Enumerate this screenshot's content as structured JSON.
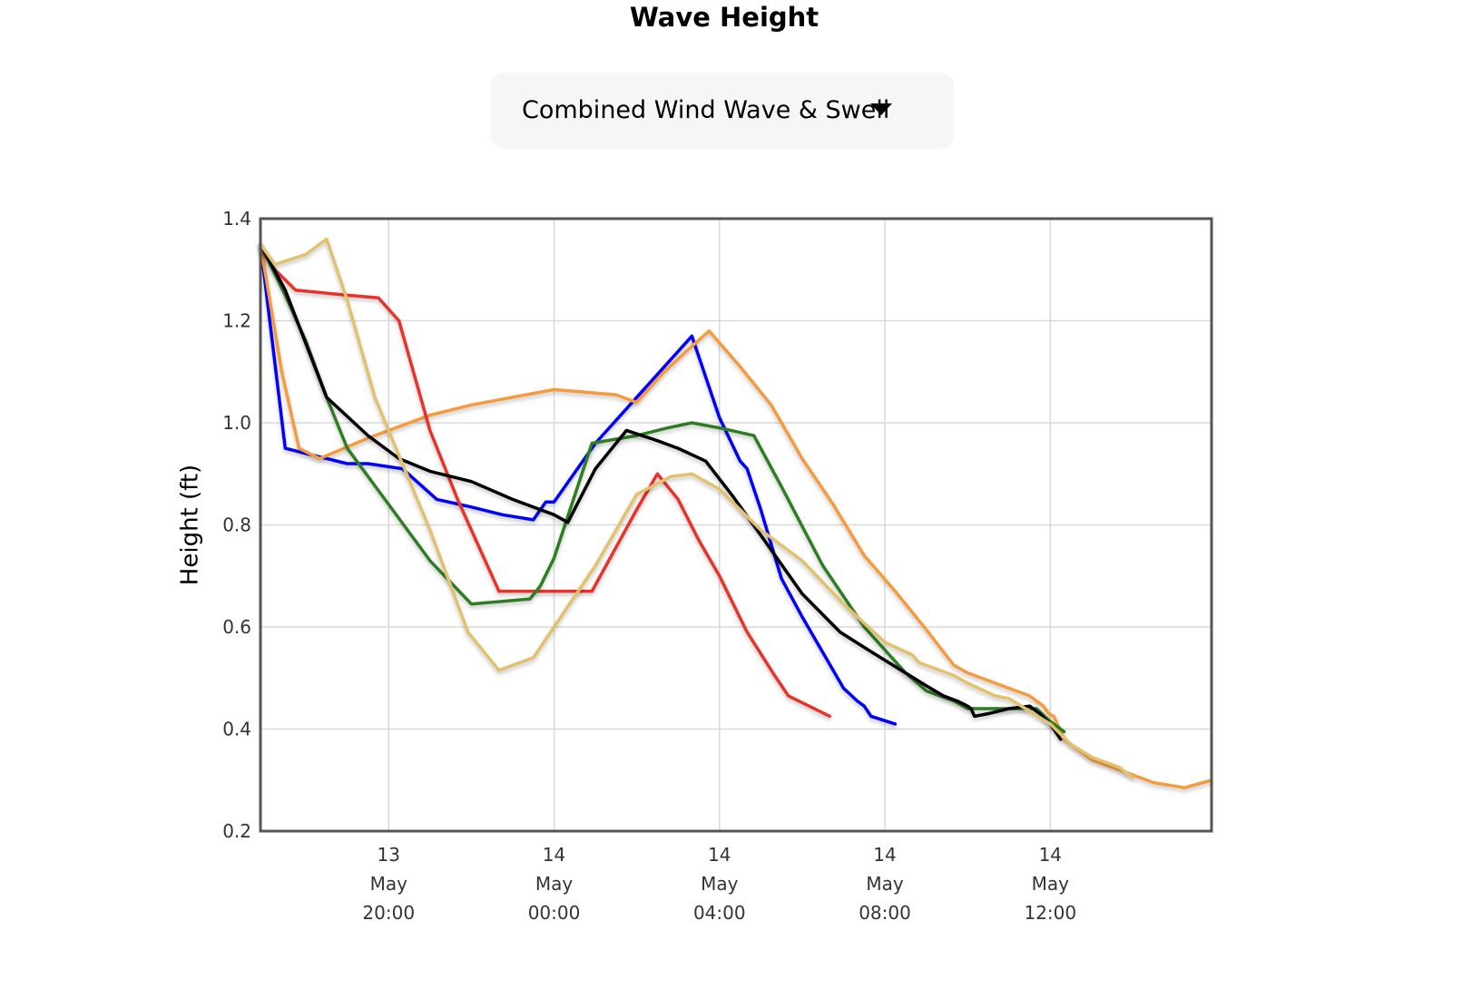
{
  "page": {
    "title": "Wave Height"
  },
  "dropdown": {
    "selected": "Combined Wind Wave & Swell",
    "icon": "caret-down-icon"
  },
  "chart_data": {
    "type": "line",
    "title": "Wave Height",
    "xlabel": "",
    "ylabel": "Height (ft)",
    "ylim": [
      0.2,
      1.4
    ],
    "xlim": [
      "2024-05-13T16:54",
      "2024-05-14T15:54"
    ],
    "grid": true,
    "legend": "none",
    "y_ticks": [
      0.2,
      0.4,
      0.6,
      0.8,
      1.0,
      1.2,
      1.4
    ],
    "y_tick_labels": [
      "0.2",
      "0.4",
      "0.6",
      "0.8",
      "1.0",
      "1.2",
      "1.4"
    ],
    "x_ticks": [
      "2024-05-13T20:00",
      "2024-05-14T00:00",
      "2024-05-14T04:00",
      "2024-05-14T08:00",
      "2024-05-14T12:00"
    ],
    "x_tick_labels": [
      [
        "13",
        "May",
        "20:00"
      ],
      [
        "14",
        "May",
        "00:00"
      ],
      [
        "14",
        "May",
        "04:00"
      ],
      [
        "14",
        "May",
        "08:00"
      ],
      [
        "14",
        "May",
        "12:00"
      ]
    ],
    "series": [
      {
        "color": "#0000ff",
        "points": [
          [
            "2024-05-13T16:54",
            1.35
          ],
          [
            "2024-05-13T17:30",
            0.95
          ],
          [
            "2024-05-13T18:00",
            0.94
          ],
          [
            "2024-05-13T19:00",
            0.92
          ],
          [
            "2024-05-13T19:30",
            0.92
          ],
          [
            "2024-05-13T20:20",
            0.91
          ],
          [
            "2024-05-13T21:10",
            0.85
          ],
          [
            "2024-05-13T22:00",
            0.835
          ],
          [
            "2024-05-13T22:45",
            0.82
          ],
          [
            "2024-05-13T23:30",
            0.81
          ],
          [
            "2024-05-13T23:48",
            0.845
          ],
          [
            "2024-05-14T00:00",
            0.845
          ],
          [
            "2024-05-14T01:00",
            0.96
          ],
          [
            "2024-05-14T02:00",
            1.05
          ],
          [
            "2024-05-14T03:00",
            1.14
          ],
          [
            "2024-05-14T03:20",
            1.17
          ],
          [
            "2024-05-14T04:00",
            1.01
          ],
          [
            "2024-05-14T04:30",
            0.925
          ],
          [
            "2024-05-14T04:40",
            0.91
          ],
          [
            "2024-05-14T05:00",
            0.83
          ],
          [
            "2024-05-14T05:30",
            0.695
          ],
          [
            "2024-05-14T06:00",
            0.62
          ],
          [
            "2024-05-14T06:30",
            0.55
          ],
          [
            "2024-05-14T07:00",
            0.48
          ],
          [
            "2024-05-14T07:20",
            0.455
          ],
          [
            "2024-05-14T07:30",
            0.445
          ],
          [
            "2024-05-14T07:40",
            0.425
          ],
          [
            "2024-05-14T08:15",
            0.41
          ]
        ]
      },
      {
        "color": "#f59a3c",
        "points": [
          [
            "2024-05-13T16:54",
            1.35
          ],
          [
            "2024-05-13T17:25",
            1.1
          ],
          [
            "2024-05-13T17:50",
            0.95
          ],
          [
            "2024-05-13T18:20",
            0.93
          ],
          [
            "2024-05-13T19:30",
            0.97
          ],
          [
            "2024-05-13T21:00",
            1.015
          ],
          [
            "2024-05-13T22:00",
            1.035
          ],
          [
            "2024-05-14T00:00",
            1.065
          ],
          [
            "2024-05-14T01:30",
            1.055
          ],
          [
            "2024-05-14T02:00",
            1.04
          ],
          [
            "2024-05-14T02:40",
            1.1
          ],
          [
            "2024-05-14T03:20",
            1.15
          ],
          [
            "2024-05-14T03:45",
            1.18
          ],
          [
            "2024-05-14T04:30",
            1.11
          ],
          [
            "2024-05-14T05:15",
            1.035
          ],
          [
            "2024-05-14T06:00",
            0.93
          ],
          [
            "2024-05-14T06:45",
            0.84
          ],
          [
            "2024-05-14T07:30",
            0.74
          ],
          [
            "2024-05-14T08:15",
            0.67
          ],
          [
            "2024-05-14T09:00",
            0.595
          ],
          [
            "2024-05-14T09:40",
            0.525
          ],
          [
            "2024-05-14T10:00",
            0.51
          ],
          [
            "2024-05-14T10:40",
            0.49
          ],
          [
            "2024-05-14T11:00",
            0.48
          ],
          [
            "2024-05-14T11:30",
            0.465
          ],
          [
            "2024-05-14T11:50",
            0.445
          ],
          [
            "2024-05-14T11:58",
            0.43
          ],
          [
            "2024-05-14T12:05",
            0.425
          ],
          [
            "2024-05-14T12:20",
            0.38
          ],
          [
            "2024-05-14T12:40",
            0.36
          ],
          [
            "2024-05-14T13:00",
            0.34
          ],
          [
            "2024-05-14T13:40",
            0.32
          ],
          [
            "2024-05-14T14:00",
            0.31
          ],
          [
            "2024-05-14T14:30",
            0.295
          ],
          [
            "2024-05-14T15:15",
            0.285
          ],
          [
            "2024-05-14T15:54",
            0.3
          ]
        ]
      },
      {
        "color": "#e8312b",
        "points": [
          [
            "2024-05-13T16:54",
            1.34
          ],
          [
            "2024-05-13T17:15",
            1.3
          ],
          [
            "2024-05-13T17:45",
            1.26
          ],
          [
            "2024-05-13T19:00",
            1.25
          ],
          [
            "2024-05-13T19:45",
            1.245
          ],
          [
            "2024-05-13T20:15",
            1.2
          ],
          [
            "2024-05-13T21:00",
            0.985
          ],
          [
            "2024-05-13T21:40",
            0.85
          ],
          [
            "2024-05-13T22:20",
            0.73
          ],
          [
            "2024-05-13T22:40",
            0.67
          ],
          [
            "2024-05-14T00:00",
            0.67
          ],
          [
            "2024-05-14T00:55",
            0.67
          ],
          [
            "2024-05-14T02:00",
            0.83
          ],
          [
            "2024-05-14T02:30",
            0.9
          ],
          [
            "2024-05-14T03:00",
            0.85
          ],
          [
            "2024-05-14T03:30",
            0.77
          ],
          [
            "2024-05-14T04:00",
            0.7
          ],
          [
            "2024-05-14T04:40",
            0.59
          ],
          [
            "2024-05-14T05:20",
            0.505
          ],
          [
            "2024-05-14T05:40",
            0.465
          ],
          [
            "2024-05-14T06:40",
            0.425
          ]
        ]
      },
      {
        "color": "#2e7d23",
        "points": [
          [
            "2024-05-13T16:54",
            1.35
          ],
          [
            "2024-05-13T17:30",
            1.25
          ],
          [
            "2024-05-13T18:00",
            1.16
          ],
          [
            "2024-05-13T18:30",
            1.05
          ],
          [
            "2024-05-13T19:00",
            0.95
          ],
          [
            "2024-05-13T20:00",
            0.84
          ],
          [
            "2024-05-13T21:00",
            0.73
          ],
          [
            "2024-05-13T22:00",
            0.645
          ],
          [
            "2024-05-13T23:25",
            0.655
          ],
          [
            "2024-05-13T23:40",
            0.68
          ],
          [
            "2024-05-14T00:00",
            0.735
          ],
          [
            "2024-05-14T00:55",
            0.96
          ],
          [
            "2024-05-14T02:00",
            0.975
          ],
          [
            "2024-05-14T02:45",
            0.99
          ],
          [
            "2024-05-14T03:20",
            1.0
          ],
          [
            "2024-05-14T04:00",
            0.99
          ],
          [
            "2024-05-14T04:50",
            0.975
          ],
          [
            "2024-05-14T05:30",
            0.875
          ],
          [
            "2024-05-14T06:30",
            0.72
          ],
          [
            "2024-05-14T07:30",
            0.6
          ],
          [
            "2024-05-14T08:30",
            0.51
          ],
          [
            "2024-05-14T09:00",
            0.475
          ],
          [
            "2024-05-14T09:40",
            0.455
          ],
          [
            "2024-05-14T10:00",
            0.44
          ],
          [
            "2024-05-14T10:40",
            0.44
          ],
          [
            "2024-05-14T11:00",
            0.44
          ],
          [
            "2024-05-14T11:40",
            0.44
          ],
          [
            "2024-05-14T12:00",
            0.415
          ],
          [
            "2024-05-14T12:20",
            0.395
          ]
        ]
      },
      {
        "color": "#000000",
        "points": [
          [
            "2024-05-13T16:54",
            1.35
          ],
          [
            "2024-05-13T17:30",
            1.26
          ],
          [
            "2024-05-13T18:30",
            1.05
          ],
          [
            "2024-05-13T19:30",
            0.975
          ],
          [
            "2024-05-13T20:15",
            0.93
          ],
          [
            "2024-05-13T21:00",
            0.905
          ],
          [
            "2024-05-13T22:00",
            0.885
          ],
          [
            "2024-05-13T23:00",
            0.85
          ],
          [
            "2024-05-14T00:00",
            0.82
          ],
          [
            "2024-05-14T00:20",
            0.805
          ],
          [
            "2024-05-14T01:00",
            0.91
          ],
          [
            "2024-05-14T01:45",
            0.985
          ],
          [
            "2024-05-14T02:30",
            0.965
          ],
          [
            "2024-05-14T03:00",
            0.95
          ],
          [
            "2024-05-14T03:40",
            0.925
          ],
          [
            "2024-05-14T04:20",
            0.855
          ],
          [
            "2024-05-14T05:00",
            0.78
          ],
          [
            "2024-05-14T06:00",
            0.665
          ],
          [
            "2024-05-14T06:55",
            0.59
          ],
          [
            "2024-05-14T07:30",
            0.56
          ],
          [
            "2024-05-14T08:00",
            0.535
          ],
          [
            "2024-05-14T08:30",
            0.51
          ],
          [
            "2024-05-14T09:00",
            0.485
          ],
          [
            "2024-05-14T09:25",
            0.465
          ],
          [
            "2024-05-14T09:45",
            0.455
          ],
          [
            "2024-05-14T10:00",
            0.445
          ],
          [
            "2024-05-14T10:05",
            0.44
          ],
          [
            "2024-05-14T10:10",
            0.425
          ],
          [
            "2024-05-14T10:30",
            0.43
          ],
          [
            "2024-05-14T11:00",
            0.44
          ],
          [
            "2024-05-14T11:30",
            0.445
          ],
          [
            "2024-05-14T11:45",
            0.43
          ],
          [
            "2024-05-14T12:00",
            0.41
          ],
          [
            "2024-05-14T12:15",
            0.38
          ]
        ]
      },
      {
        "color": "#e2c16d",
        "points": [
          [
            "2024-05-13T16:54",
            1.35
          ],
          [
            "2024-05-13T17:15",
            1.31
          ],
          [
            "2024-05-13T18:00",
            1.33
          ],
          [
            "2024-05-13T18:30",
            1.36
          ],
          [
            "2024-05-13T19:00",
            1.24
          ],
          [
            "2024-05-13T19:40",
            1.05
          ],
          [
            "2024-05-13T20:20",
            0.92
          ],
          [
            "2024-05-13T21:00",
            0.79
          ],
          [
            "2024-05-13T21:55",
            0.59
          ],
          [
            "2024-05-13T22:40",
            0.515
          ],
          [
            "2024-05-13T23:30",
            0.54
          ],
          [
            "2024-05-14T00:00",
            0.6
          ],
          [
            "2024-05-14T01:00",
            0.72
          ],
          [
            "2024-05-14T02:00",
            0.86
          ],
          [
            "2024-05-14T02:50",
            0.895
          ],
          [
            "2024-05-14T03:20",
            0.9
          ],
          [
            "2024-05-14T04:00",
            0.87
          ],
          [
            "2024-05-14T05:00",
            0.79
          ],
          [
            "2024-05-14T06:00",
            0.73
          ],
          [
            "2024-05-14T07:00",
            0.645
          ],
          [
            "2024-05-14T08:00",
            0.57
          ],
          [
            "2024-05-14T08:40",
            0.545
          ],
          [
            "2024-05-14T08:50",
            0.53
          ],
          [
            "2024-05-14T09:40",
            0.505
          ],
          [
            "2024-05-14T10:00",
            0.49
          ],
          [
            "2024-05-14T10:40",
            0.465
          ],
          [
            "2024-05-14T11:00",
            0.46
          ],
          [
            "2024-05-14T11:30",
            0.435
          ],
          [
            "2024-05-14T12:00",
            0.41
          ],
          [
            "2024-05-14T12:30",
            0.37
          ],
          [
            "2024-05-14T13:00",
            0.345
          ],
          [
            "2024-05-14T13:40",
            0.325
          ],
          [
            "2024-05-14T14:00",
            0.305
          ]
        ]
      }
    ]
  }
}
